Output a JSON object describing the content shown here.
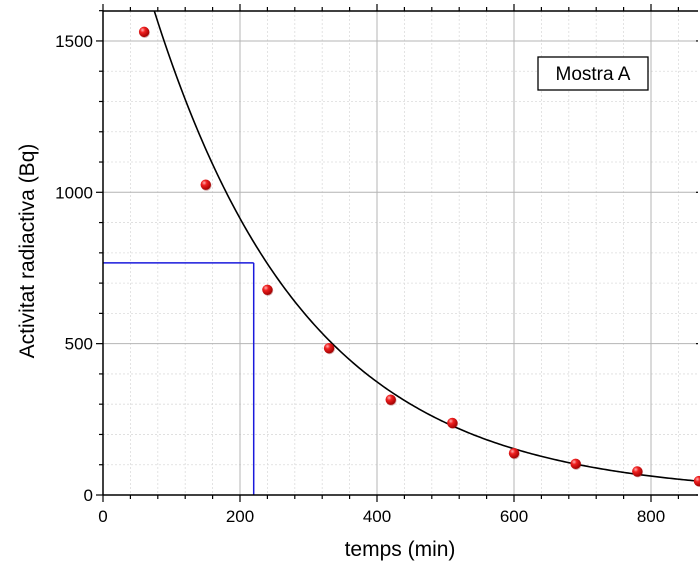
{
  "chart_data": {
    "type": "scatter",
    "xlabel": "temps (min)",
    "ylabel": "Activitat radiactiva (Bq)",
    "xlim": [
      0,
      870
    ],
    "ylim": [
      0,
      1600
    ],
    "xticks": [
      0,
      200,
      400,
      600,
      800
    ],
    "yticks": [
      0,
      500,
      1000,
      1500
    ],
    "grid": true,
    "series": [
      {
        "type": "scatter",
        "color": "#e8101a",
        "x": [
          60,
          150,
          240,
          330,
          420,
          510,
          600,
          690,
          780,
          870
        ],
        "y": [
          1530,
          1025,
          678,
          485,
          315,
          238,
          138,
          103,
          78,
          46
        ]
      },
      {
        "type": "line",
        "color": "#000000",
        "fit": {
          "form": "exponential",
          "A0": 2235,
          "half_life_min": 155
        }
      }
    ],
    "guide_lines": {
      "color": "#1a1adc",
      "x": 220,
      "y": 767
    },
    "annotation": {
      "text": "Mostra A",
      "position": "top-right"
    }
  }
}
